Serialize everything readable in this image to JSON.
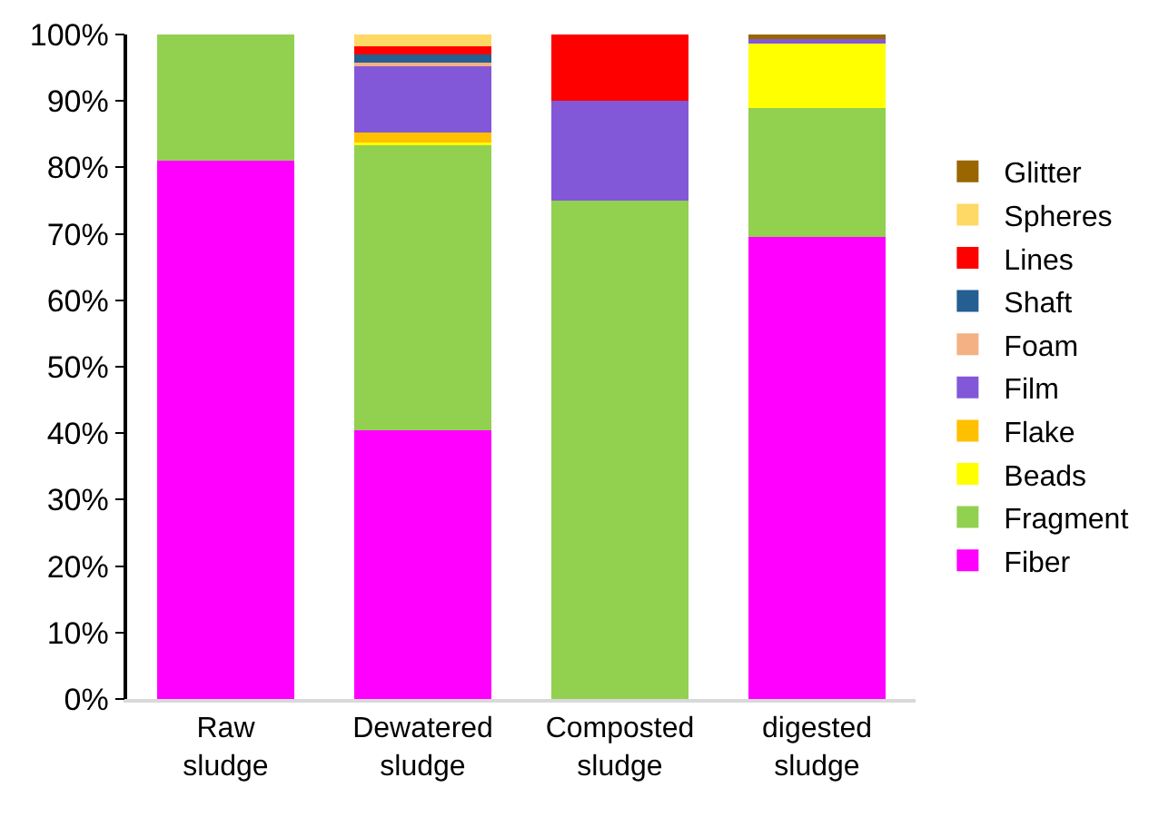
{
  "chart_data": {
    "type": "bar",
    "stacked": true,
    "categories": [
      "Raw sludge",
      "Dewatered sludge",
      "Composted sludge",
      "digested sludge"
    ],
    "series": [
      {
        "name": "Fiber",
        "color": "#ff00ff",
        "values": [
          81,
          40.5,
          0,
          69.5
        ]
      },
      {
        "name": "Fragment",
        "color": "#92d050",
        "values": [
          19,
          43.1,
          75,
          19.4
        ]
      },
      {
        "name": "Beads",
        "color": "#ffff00",
        "values": [
          0,
          0.2,
          0,
          9.9
        ]
      },
      {
        "name": "Flake",
        "color": "#ffc000",
        "values": [
          0,
          1.4,
          0,
          0
        ]
      },
      {
        "name": "Film",
        "color": "#8258d8",
        "values": [
          0,
          10.0,
          15,
          0.5
        ]
      },
      {
        "name": "Foam",
        "color": "#f4b183",
        "values": [
          0,
          0.6,
          0,
          0
        ]
      },
      {
        "name": "Shaft",
        "color": "#255e91",
        "values": [
          0,
          1.2,
          0,
          0
        ]
      },
      {
        "name": "Lines",
        "color": "#ff0000",
        "values": [
          0,
          1.2,
          10,
          0
        ]
      },
      {
        "name": "Spheres",
        "color": "#ffd966",
        "values": [
          0,
          2.0,
          0,
          0
        ]
      },
      {
        "name": "Glitter",
        "color": "#996600",
        "values": [
          0,
          0,
          0,
          0.7
        ]
      }
    ],
    "ylim": [
      0,
      100
    ],
    "yticks": [
      {
        "value": 0,
        "label": "0%"
      },
      {
        "value": 10,
        "label": "10%"
      },
      {
        "value": 20,
        "label": "20%"
      },
      {
        "value": 30,
        "label": "30%"
      },
      {
        "value": 40,
        "label": "40%"
      },
      {
        "value": 50,
        "label": "50%"
      },
      {
        "value": 60,
        "label": "60%"
      },
      {
        "value": 70,
        "label": "70%"
      },
      {
        "value": 80,
        "label": "80%"
      },
      {
        "value": 90,
        "label": "90%"
      },
      {
        "value": 100,
        "label": "100%"
      }
    ],
    "grid": false,
    "legend": "right"
  }
}
